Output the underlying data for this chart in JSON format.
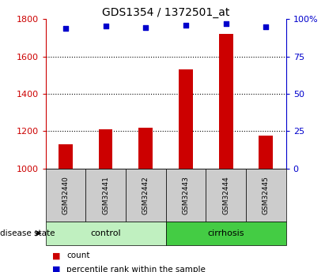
{
  "title": "GDS1354 / 1372501_at",
  "samples": [
    "GSM32440",
    "GSM32441",
    "GSM32442",
    "GSM32443",
    "GSM32444",
    "GSM32445"
  ],
  "bar_values": [
    1130,
    1210,
    1220,
    1530,
    1720,
    1175
  ],
  "percentile_values": [
    94,
    95.5,
    94.5,
    96,
    97,
    95
  ],
  "bar_color": "#cc0000",
  "percentile_color": "#0000cc",
  "ylim_left": [
    1000,
    1800
  ],
  "ylim_right": [
    0,
    100
  ],
  "yticks_left": [
    1000,
    1200,
    1400,
    1600,
    1800
  ],
  "yticks_right": [
    0,
    25,
    50,
    75,
    100
  ],
  "ytick_labels_right": [
    "0",
    "25",
    "50",
    "75",
    "100%"
  ],
  "grid_values": [
    1200,
    1400,
    1600
  ],
  "groups": [
    {
      "label": "control",
      "indices": [
        0,
        1,
        2
      ]
    },
    {
      "label": "cirrhosis",
      "indices": [
        3,
        4,
        5
      ]
    }
  ],
  "group_colors": [
    "#c0f0c0",
    "#44cc44"
  ],
  "disease_state_label": "disease state",
  "legend_count_label": "count",
  "legend_percentile_label": "percentile rank within the sample",
  "bar_width": 0.35,
  "figure_bg": "#ffffff",
  "plot_bg": "#ffffff",
  "tick_label_color_left": "#cc0000",
  "tick_label_color_right": "#0000cc",
  "sample_box_color": "#cccccc"
}
